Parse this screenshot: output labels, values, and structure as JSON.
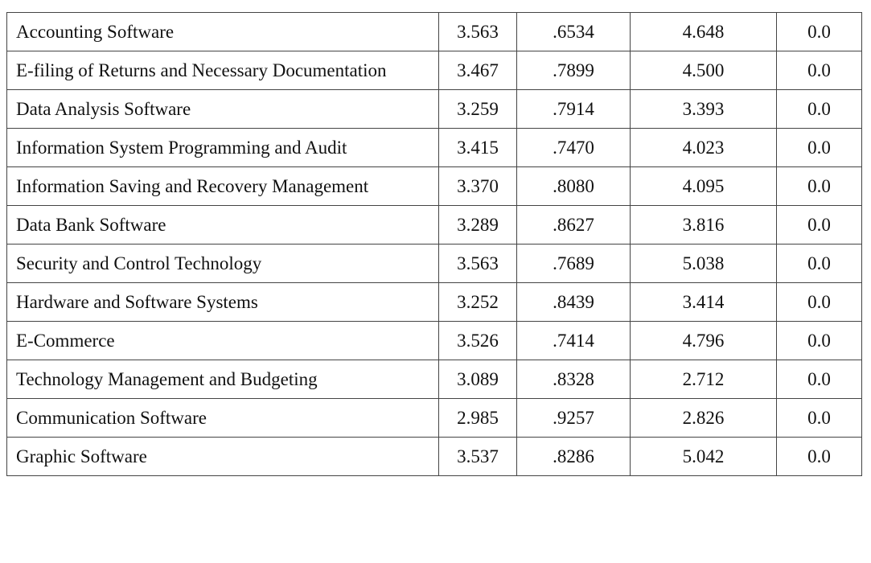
{
  "table": {
    "rows": [
      [
        "Accounting Software",
        "3.563",
        ".6534",
        "4.648",
        "0.0"
      ],
      [
        "E-filing of Returns and Necessary Documentation",
        "3.467",
        ".7899",
        "4.500",
        "0.0"
      ],
      [
        "Data Analysis Software",
        "3.259",
        ".7914",
        "3.393",
        "0.0"
      ],
      [
        "Information System Programming and Audit",
        "3.415",
        ".7470",
        "4.023",
        "0.0"
      ],
      [
        "Information Saving and Recovery Management",
        "3.370",
        ".8080",
        "4.095",
        "0.0"
      ],
      [
        "Data Bank Software",
        "3.289",
        ".8627",
        "3.816",
        "0.0"
      ],
      [
        "Security and Control Technology",
        "3.563",
        ".7689",
        "5.038",
        "0.0"
      ],
      [
        "Hardware and Software Systems",
        "3.252",
        ".8439",
        "3.414",
        "0.0"
      ],
      [
        "E-Commerce",
        "3.526",
        ".7414",
        "4.796",
        "0.0"
      ],
      [
        "Technology Management and Budgeting",
        "3.089",
        ".8328",
        "2.712",
        "0.0"
      ],
      [
        "Communication Software",
        "2.985",
        ".9257",
        "2.826",
        "0.0"
      ],
      [
        "Graphic Software",
        "3.537",
        ".8286",
        "5.042",
        "0.0"
      ]
    ]
  }
}
